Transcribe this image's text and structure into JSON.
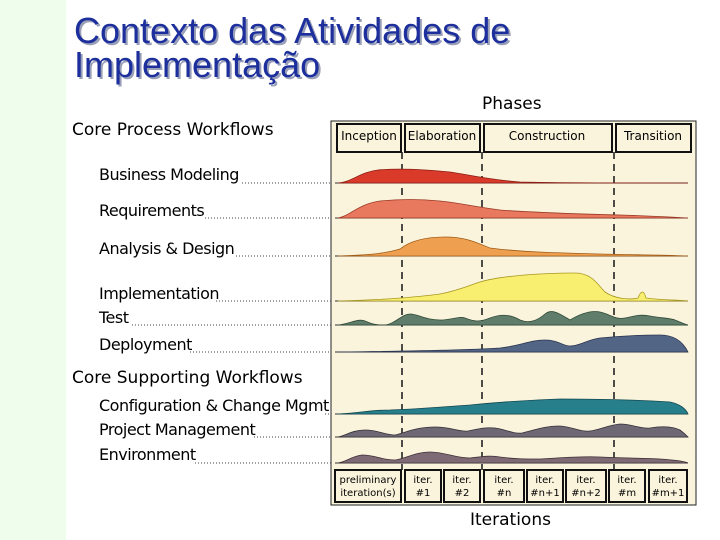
{
  "slide": {
    "title": "Contexto das Atividades de\nImplementação"
  },
  "diagram": {
    "phases_label": "Phases",
    "iterations_label": "Iterations",
    "core_process_header": "Core Process Workflows",
    "core_supporting_header": "Core Supporting Workflows",
    "phases": [
      "Inception",
      "Elaboration",
      "Construction",
      "Transition"
    ],
    "process_workflows": [
      "Business Modeling",
      "Requirements",
      "Analysis & Design",
      "Implementation",
      "Test",
      "Deployment"
    ],
    "supporting_workflows": [
      "Configuration & Change Mgmt",
      "Project Management",
      "Environment"
    ],
    "iterations": [
      {
        "line1": "preliminary",
        "line2": "iteration(s)"
      },
      {
        "line1": "iter.",
        "line2": "#1"
      },
      {
        "line1": "iter.",
        "line2": "#2"
      },
      {
        "line1": "iter.",
        "line2": "#n"
      },
      {
        "line1": "iter.",
        "line2": "#n+1"
      },
      {
        "line1": "iter.",
        "line2": "#n+2"
      },
      {
        "line1": "iter.",
        "line2": "#m"
      },
      {
        "line1": "iter.",
        "line2": "#m+1"
      }
    ],
    "colors": {
      "business_modeling": "#d93a2a",
      "requirements": "#e8785e",
      "analysis_design": "#eea050",
      "implementation": "#f8ee70",
      "test": "#5f7d6a",
      "deployment": "#536585",
      "configuration": "#277f8b",
      "project_management": "#6e6874",
      "environment": "#7e6a74",
      "panel": "#fbf4dd",
      "title": "#1c2f9c"
    }
  }
}
